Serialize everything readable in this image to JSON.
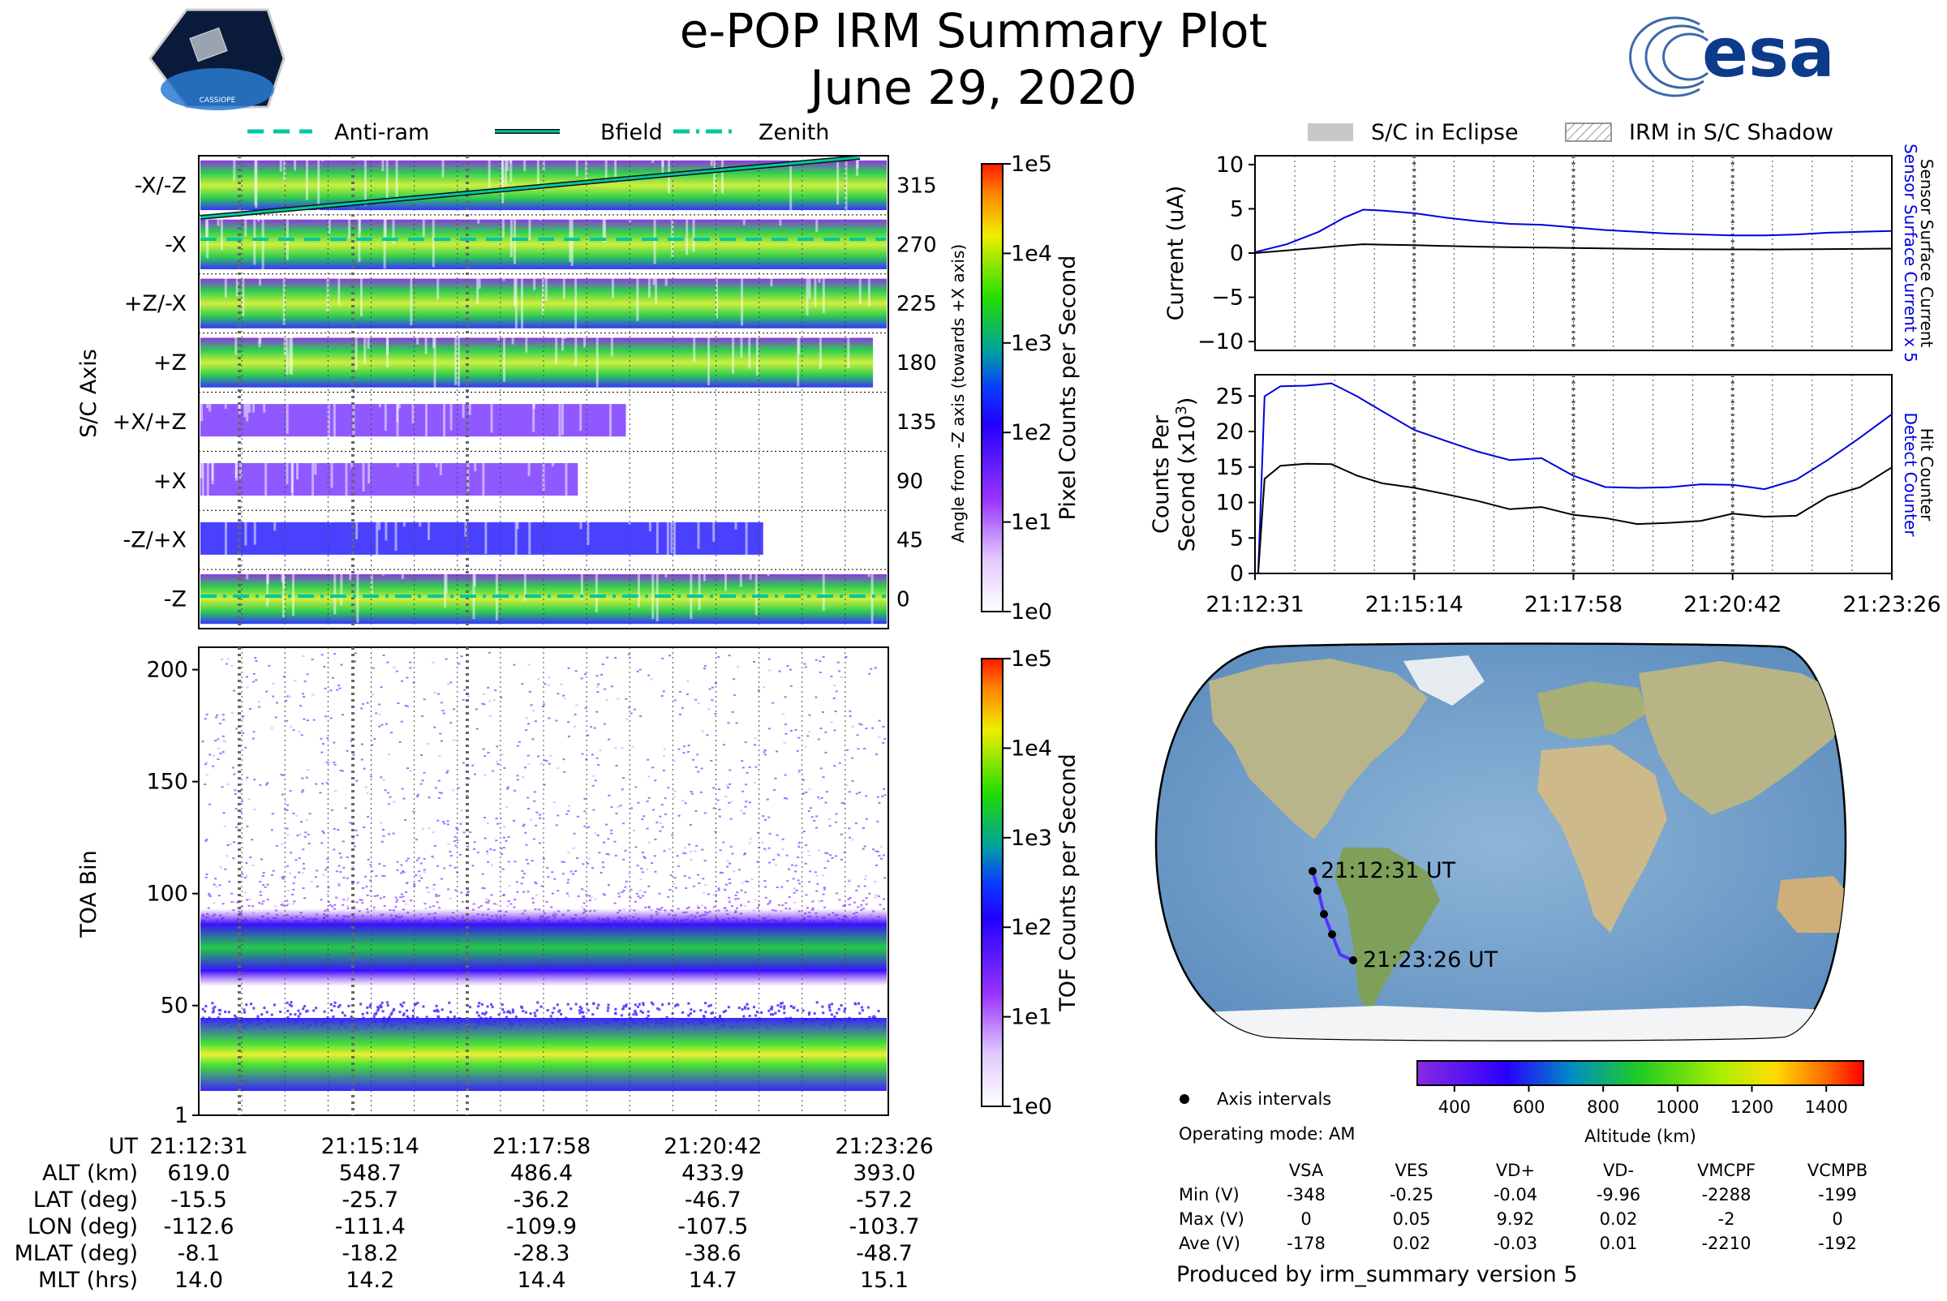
{
  "header": {
    "title": "e-POP IRM Summary Plot",
    "date": "June 29, 2020",
    "left_logo_text": "CASSIOPE",
    "right_logo_text": "esa"
  },
  "colors": {
    "sensor_current": "#0000dd",
    "counter": "#0000dd",
    "black": "#000000",
    "anti_ram_line": "#00c8a0",
    "bfield_line": "#00c8a0",
    "zenith_line": "#00c8a0",
    "orbit_track": "#5533ff"
  },
  "legend_top_left": [
    {
      "name": "Anti-ram",
      "style": "dashed"
    },
    {
      "name": "Bfield",
      "style": "solid"
    },
    {
      "name": "Zenith",
      "style": "dashdot"
    }
  ],
  "legend_top_right": [
    {
      "name": "S/C in Eclipse",
      "style": "gray-fill"
    },
    {
      "name": "IRM in S/C Shadow",
      "style": "hatch"
    }
  ],
  "time_ticks": [
    "21:12:31",
    "21:15:14",
    "21:17:58",
    "21:20:42",
    "21:23:26"
  ],
  "chart_data": [
    {
      "id": "sc_axis_panel",
      "type": "heatmap",
      "ylabel": "S/C Axis",
      "y2label": "Angle from -Z axis (towards +X axis)",
      "rows": [
        "-X/-Z",
        "-X",
        "+Z/-X",
        "+Z",
        "+X/+Z",
        "+X",
        "-Z/+X",
        "-Z"
      ],
      "angles": [
        "315",
        "270",
        "225",
        "180",
        "135",
        "90",
        "45",
        "0"
      ],
      "colorbar": {
        "label": "Pixel Counts per Second",
        "ticks": [
          "1e5",
          "1e4",
          "1e3",
          "1e2",
          "1e1",
          "1e0"
        ],
        "scale": "log"
      }
    },
    {
      "id": "toa_panel",
      "type": "heatmap",
      "ylabel": "TOA Bin",
      "yticks": [
        "200",
        "150",
        "100",
        "50",
        "1"
      ],
      "ylim": [
        1,
        210
      ],
      "bands": [
        {
          "center": 68,
          "width": 18
        },
        {
          "center": 27,
          "width": 14
        }
      ],
      "colorbar": {
        "label": "TOF Counts per Second",
        "ticks": [
          "1e5",
          "1e4",
          "1e3",
          "1e2",
          "1e1",
          "1e0"
        ],
        "scale": "log"
      }
    },
    {
      "id": "current_panel",
      "type": "line",
      "ylabel": "Current (uA)",
      "yticks": [
        "10",
        "5",
        "0",
        "−5",
        "−10"
      ],
      "ylim": [
        -11,
        11
      ],
      "right_labels": {
        "blue": "Sensor Surface Current x 5",
        "black": "Sensor Surface Current"
      },
      "x": [
        0,
        0.05,
        0.1,
        0.14,
        0.17,
        0.2,
        0.25,
        0.3,
        0.35,
        0.4,
        0.45,
        0.5,
        0.55,
        0.6,
        0.65,
        0.7,
        0.75,
        0.8,
        0.85,
        0.9,
        0.95,
        1.0
      ],
      "series": [
        {
          "name": "Sensor Surface Current x 5",
          "color": "blue",
          "values": [
            0.1,
            1.0,
            2.4,
            4.0,
            4.9,
            4.8,
            4.5,
            4.0,
            3.6,
            3.3,
            3.2,
            2.9,
            2.6,
            2.4,
            2.2,
            2.1,
            2.0,
            2.0,
            2.1,
            2.3,
            2.4,
            2.5
          ]
        },
        {
          "name": "Sensor Surface Current",
          "color": "black",
          "values": [
            0.0,
            0.3,
            0.6,
            0.85,
            1.0,
            0.95,
            0.9,
            0.8,
            0.72,
            0.66,
            0.62,
            0.58,
            0.52,
            0.48,
            0.45,
            0.42,
            0.41,
            0.4,
            0.42,
            0.45,
            0.47,
            0.5
          ]
        }
      ]
    },
    {
      "id": "counts_panel",
      "type": "line",
      "ylabel1": "Counts Per",
      "ylabel2": "Second (x10",
      "ylabel_exp": "3",
      "ylabel_end": ")",
      "yticks": [
        "25",
        "20",
        "15",
        "10",
        "5",
        "0"
      ],
      "ylim": [
        0,
        28
      ],
      "right_labels": {
        "blue": "Detect Counter",
        "black": "Hit Counter"
      },
      "x": [
        0,
        0.005,
        0.015,
        0.04,
        0.08,
        0.12,
        0.16,
        0.2,
        0.25,
        0.3,
        0.35,
        0.4,
        0.45,
        0.5,
        0.55,
        0.6,
        0.65,
        0.7,
        0.75,
        0.8,
        0.85,
        0.9,
        0.95,
        1.0
      ],
      "series": [
        {
          "name": "Detect Counter",
          "color": "blue",
          "values": [
            0,
            0,
            24.5,
            26.0,
            26.8,
            26.5,
            25.0,
            22.5,
            20.5,
            18.8,
            17.2,
            16.0,
            15.8,
            14.0,
            12.5,
            11.8,
            12.0,
            12.5,
            12.8,
            12.2,
            13.5,
            16.0,
            19.5,
            22.5
          ]
        },
        {
          "name": "Hit Counter",
          "color": "black",
          "values": [
            0,
            0,
            13.5,
            14.8,
            15.3,
            15.0,
            14.2,
            12.8,
            11.8,
            10.8,
            9.8,
            9.2,
            9.0,
            8.0,
            7.4,
            7.0,
            7.3,
            7.8,
            8.0,
            7.6,
            8.5,
            10.5,
            12.5,
            15.0
          ]
        }
      ]
    }
  ],
  "map": {
    "start_label": "21:12:31 UT",
    "end_label": "21:23:26 UT",
    "legend_marker": "Axis intervals",
    "operating_mode": "Operating mode: AM",
    "altitude_colorbar": {
      "label": "Altitude (km)",
      "ticks": [
        "400",
        "600",
        "800",
        "1000",
        "1200",
        "1400"
      ]
    }
  },
  "ephemeris": {
    "rows": [
      {
        "label": "UT",
        "values": [
          "21:12:31",
          "21:15:14",
          "21:17:58",
          "21:20:42",
          "21:23:26"
        ]
      },
      {
        "label": "ALT (km)",
        "values": [
          "619.0",
          "548.7",
          "486.4",
          "433.9",
          "393.0"
        ]
      },
      {
        "label": "LAT (deg)",
        "values": [
          "-15.5",
          "-25.7",
          "-36.2",
          "-46.7",
          "-57.2"
        ]
      },
      {
        "label": "LON (deg)",
        "values": [
          "-112.6",
          "-111.4",
          "-109.9",
          "-107.5",
          "-103.7"
        ]
      },
      {
        "label": "MLAT (deg)",
        "values": [
          "-8.1",
          "-18.2",
          "-28.3",
          "-38.6",
          "-48.7"
        ]
      },
      {
        "label": "MLT (hrs)",
        "values": [
          "14.0",
          "14.2",
          "14.4",
          "14.7",
          "15.1"
        ]
      }
    ]
  },
  "voltages": {
    "headers": [
      "VSA",
      "VES",
      "VD+",
      "VD-",
      "VMCPF",
      "VCMPB"
    ],
    "rows": [
      {
        "label": "Min (V)",
        "values": [
          "-348",
          "-0.25",
          "-0.04",
          "-9.96",
          "-2288",
          "-199"
        ]
      },
      {
        "label": "Max (V)",
        "values": [
          "0",
          "0.05",
          "9.92",
          "0.02",
          "-2",
          "0"
        ]
      },
      {
        "label": "Ave (V)",
        "values": [
          "-178",
          "0.02",
          "-0.03",
          "0.01",
          "-2210",
          "-192"
        ]
      }
    ]
  },
  "footer": "Produced by irm_summary version 5"
}
